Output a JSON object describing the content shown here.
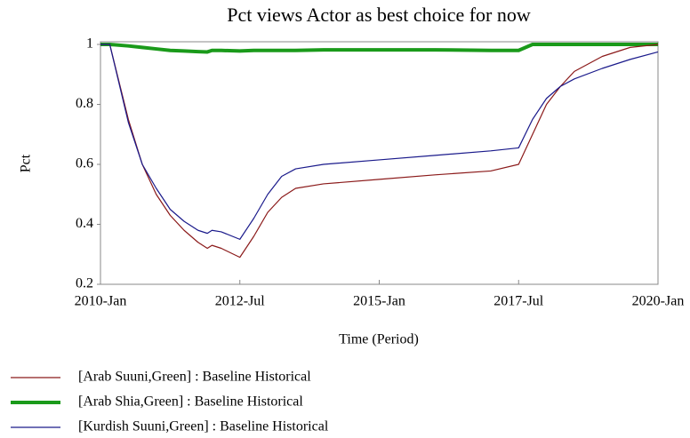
{
  "chart_data": {
    "type": "line",
    "title": "Pct views Actor as best choice for now",
    "xlabel": "Time (Period)",
    "ylabel": "Pct",
    "x": [
      "2010-Jan",
      "2010-Mar",
      "2010-Jul",
      "2010-Oct",
      "2011-Jan",
      "2011-Apr",
      "2011-Jul",
      "2011-Oct",
      "2011-Dec",
      "2012-Jan",
      "2012-Mar",
      "2012-Jul",
      "2012-Oct",
      "2013-Jan",
      "2013-Apr",
      "2013-Jul",
      "2014-Jan",
      "2015-Jan",
      "2016-Jan",
      "2017-Jan",
      "2017-Jul",
      "2017-Oct",
      "2018-Jan",
      "2018-Apr",
      "2018-Jul",
      "2019-Jan",
      "2019-Jul",
      "2020-Jan"
    ],
    "xlim": [
      "2010-Jan",
      "2020-Jan"
    ],
    "xticks": [
      "2010-Jan",
      "2012-Jul",
      "2015-Jan",
      "2017-Jul",
      "2020-Jan"
    ],
    "ylim": [
      0.2,
      1
    ],
    "yticks": [
      0.2,
      0.4,
      0.6,
      0.8,
      1
    ],
    "grid": false,
    "legend": "bottom",
    "series": [
      {
        "name": "[Arab Suuni,Green] : Baseline Historical",
        "color": "#8b1a1a",
        "line_width": 1.2,
        "values": [
          1.0,
          1.0,
          0.75,
          0.6,
          0.5,
          0.43,
          0.38,
          0.34,
          0.32,
          0.33,
          0.32,
          0.29,
          0.36,
          0.44,
          0.49,
          0.52,
          0.535,
          0.55,
          0.565,
          0.578,
          0.6,
          0.7,
          0.8,
          0.86,
          0.91,
          0.96,
          0.99,
          1.0
        ]
      },
      {
        "name": "[Arab Shia,Green] : Baseline Historical",
        "color": "#1a9a1a",
        "line_width": 4,
        "values": [
          1.0,
          1.0,
          0.995,
          0.99,
          0.985,
          0.98,
          0.978,
          0.976,
          0.975,
          0.98,
          0.98,
          0.978,
          0.98,
          0.98,
          0.98,
          0.98,
          0.982,
          0.982,
          0.982,
          0.98,
          0.98,
          1.0,
          1.0,
          1.0,
          1.0,
          1.0,
          1.0,
          1.0
        ]
      },
      {
        "name": "[Kurdish Suuni,Green] : Baseline Historical",
        "color": "#1a1a8b",
        "line_width": 1.2,
        "values": [
          1.0,
          1.0,
          0.74,
          0.6,
          0.52,
          0.45,
          0.41,
          0.38,
          0.37,
          0.38,
          0.375,
          0.35,
          0.42,
          0.5,
          0.56,
          0.585,
          0.6,
          0.615,
          0.63,
          0.645,
          0.655,
          0.75,
          0.82,
          0.86,
          0.885,
          0.92,
          0.95,
          0.975
        ]
      }
    ]
  }
}
